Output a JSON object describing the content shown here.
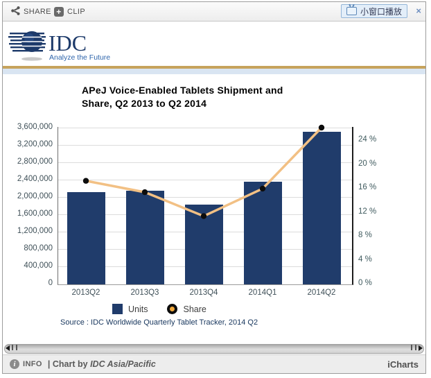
{
  "toolbar": {
    "share_label": "SHARE",
    "clip_label": "CLIP",
    "clip_plus": "+",
    "popup_label": "小窗口播放",
    "close_label": "×"
  },
  "logo": {
    "name": "IDC",
    "tagline": "Analyze the Future"
  },
  "chart_data": {
    "type": "bar",
    "subtype": "bar-line-combo",
    "title": "APeJ Voice-Enabled Tablets Shipment and Share, Q2 2013 to Q2 2014",
    "title_line1": "APeJ Voice-Enabled Tablets Shipment and",
    "title_line2": "Share, Q2 2013 to Q2 2014",
    "categories": [
      "2013Q2",
      "2013Q3",
      "2013Q4",
      "2014Q1",
      "2014Q2"
    ],
    "series": [
      {
        "name": "Units",
        "type": "bar",
        "axis": "left",
        "color": "#203c6b",
        "values": [
          2110000,
          2150000,
          1820000,
          2360000,
          3510000
        ]
      },
      {
        "name": "Share",
        "type": "line",
        "axis": "right",
        "color": "#f2c084",
        "marker_color": "#0d0d0d",
        "values": [
          17.2,
          15.3,
          11.3,
          15.9,
          26.1
        ]
      }
    ],
    "left_axis": {
      "ticks": [
        "0",
        "400,000",
        "800,000",
        "1,200,000",
        "1,600,000",
        "2,000,000",
        "2,400,000",
        "2,800,000",
        "3,200,000",
        "3,600,000"
      ],
      "min": 0,
      "max": 3600000
    },
    "right_axis": {
      "ticks": [
        "0 %",
        "4 %",
        "8 %",
        "12 %",
        "16 %",
        "20 %",
        "24 %"
      ],
      "min": 0,
      "max": 26.1,
      "unit": "%"
    },
    "grid": true,
    "legend_position": "bottom"
  },
  "source_note": "Source : IDC Worldwide Quarterly Tablet Tracker, 2014 Q2",
  "footer": {
    "info_label": "INFO",
    "divider": "|",
    "credit_prefix": "Chart by",
    "credit_org": "IDC Asia/Pacific",
    "brand": "iCharts"
  },
  "colors": {
    "bar": "#203c6b",
    "line": "#f2c084",
    "marker": "#0d0d0d",
    "gold_rule": "#c7a35c",
    "blue_rule": "#d9e5f2",
    "axis_text": "#3f5058",
    "source_text": "#17365d"
  }
}
